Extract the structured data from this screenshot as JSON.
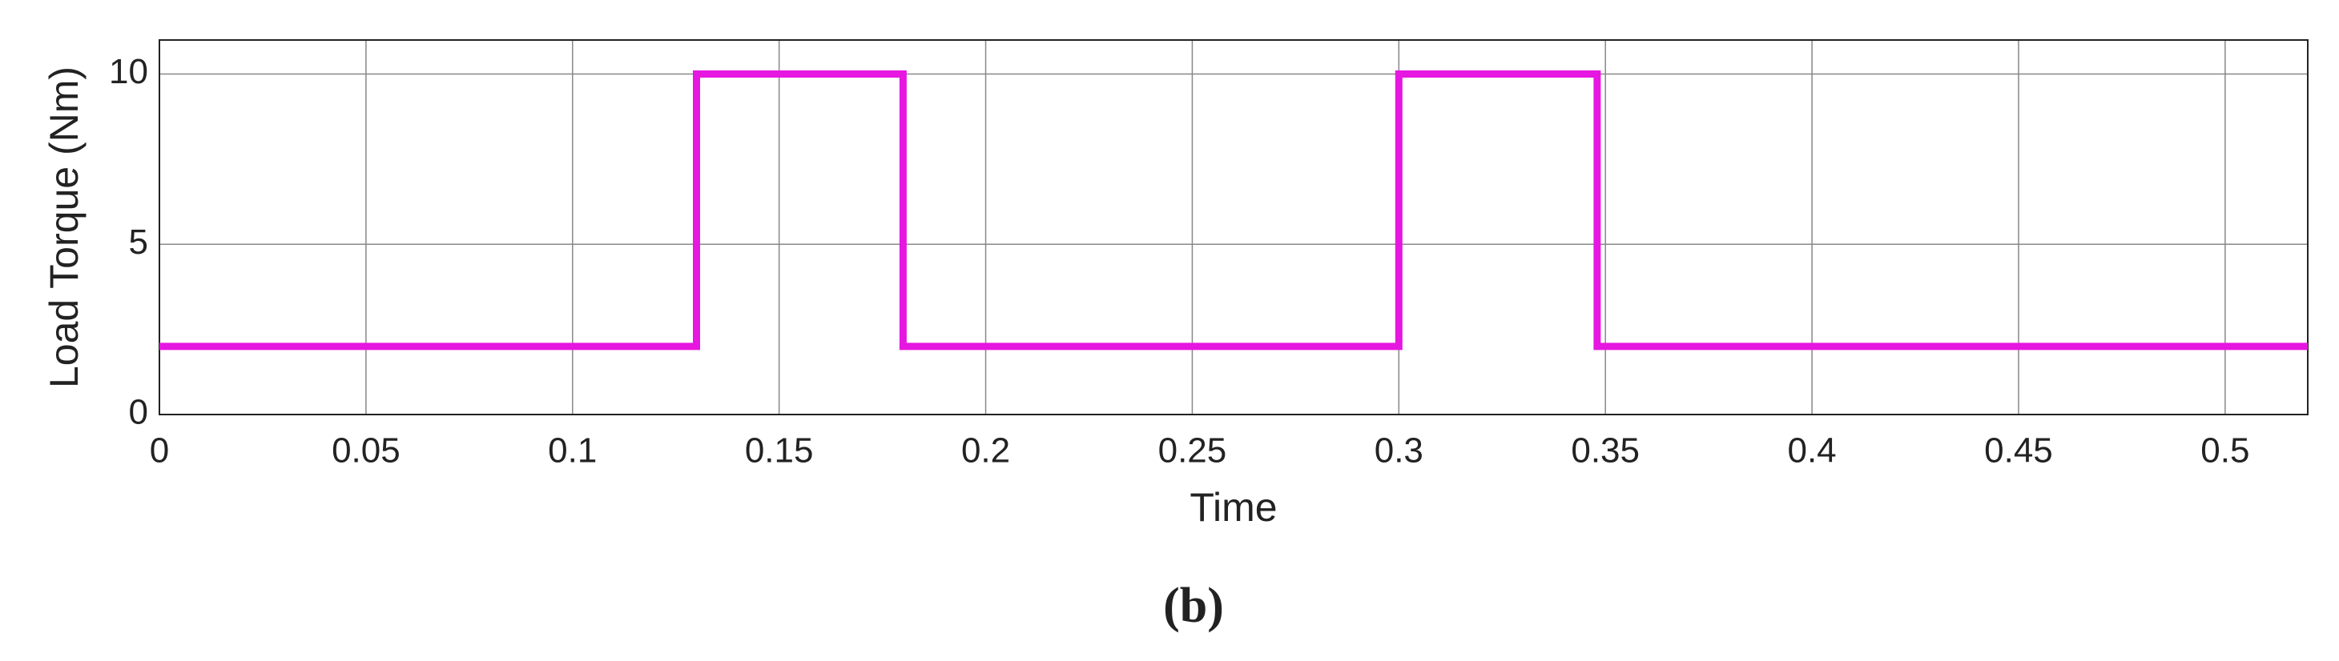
{
  "chart_data": {
    "type": "line",
    "x_label": "Time",
    "y_label": "Load Torque (Nm)",
    "caption": "(b)",
    "x": [
      0,
      0.13,
      0.13,
      0.18,
      0.18,
      0.3,
      0.3,
      0.348,
      0.348,
      0.52
    ],
    "values": [
      2,
      2,
      10,
      10,
      2,
      2,
      10,
      10,
      2,
      2
    ],
    "color": "#e617e0",
    "xlim": [
      0,
      0.52
    ],
    "xticks": [
      0,
      0.05,
      0.1,
      0.15,
      0.2,
      0.25,
      0.3,
      0.35,
      0.4,
      0.45,
      0.5
    ],
    "ylim": [
      0,
      11
    ],
    "yticks": [
      0,
      5,
      10
    ],
    "grid": true
  }
}
